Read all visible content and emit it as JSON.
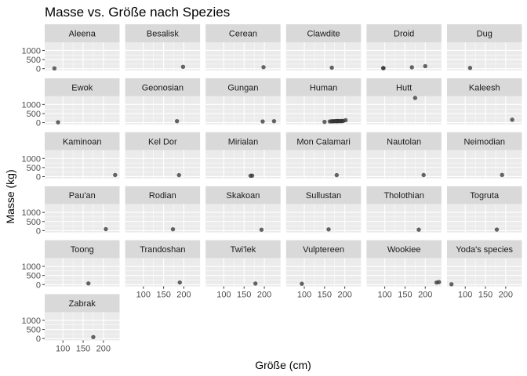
{
  "chart_data": {
    "type": "scatter",
    "title": "Masse vs. Größe nach Spezies",
    "xlabel": "Größe (cm)",
    "ylabel": "Masse (kg)",
    "x_ticks": [
      100,
      150,
      200
    ],
    "y_ticks": [
      0,
      500,
      1000
    ],
    "xlim": [
      55,
      240
    ],
    "ylim": [
      -100,
      1450
    ],
    "grid": true,
    "legend": "none",
    "point_color": "#333333",
    "panel_bg": "#ebebeb",
    "strip_bg": "#d9d9d9",
    "facets": [
      {
        "label": "Aleena",
        "points": [
          [
            79,
            15
          ]
        ]
      },
      {
        "label": "Besalisk",
        "points": [
          [
            198,
            102
          ]
        ]
      },
      {
        "label": "Cerean",
        "points": [
          [
            198,
            82
          ]
        ]
      },
      {
        "label": "Clawdite",
        "points": [
          [
            168,
            55
          ]
        ]
      },
      {
        "label": "Droid",
        "points": [
          [
            96,
            32
          ],
          [
            97,
            32
          ],
          [
            167,
            75
          ],
          [
            200,
            140
          ]
        ]
      },
      {
        "label": "Dug",
        "points": [
          [
            112,
            40
          ]
        ]
      },
      {
        "label": "Ewok",
        "points": [
          [
            88,
            20
          ]
        ]
      },
      {
        "label": "Geonosian",
        "points": [
          [
            183,
            80
          ]
        ]
      },
      {
        "label": "Gungan",
        "points": [
          [
            196,
            66
          ],
          [
            224,
            82
          ]
        ]
      },
      {
        "label": "Human",
        "points": [
          [
            150,
            45
          ],
          [
            163,
            65
          ],
          [
            167,
            75
          ],
          [
            170,
            77
          ],
          [
            172,
            77
          ],
          [
            175,
            80
          ],
          [
            178,
            84
          ],
          [
            180,
            79
          ],
          [
            182,
            90
          ],
          [
            183,
            84
          ],
          [
            185,
            85
          ],
          [
            188,
            84
          ],
          [
            191,
            88
          ],
          [
            193,
            89
          ],
          [
            196,
            90
          ],
          [
            202,
            136
          ]
        ]
      },
      {
        "label": "Hutt",
        "points": [
          [
            175,
            1358
          ]
        ]
      },
      {
        "label": "Kaleesh",
        "points": [
          [
            216,
            159
          ]
        ]
      },
      {
        "label": "Kaminoan",
        "points": [
          [
            229,
            88
          ]
        ]
      },
      {
        "label": "Kel Dor",
        "points": [
          [
            188,
            80
          ]
        ]
      },
      {
        "label": "Mirialan",
        "points": [
          [
            166,
            50
          ],
          [
            170,
            56
          ]
        ]
      },
      {
        "label": "Mon Calamari",
        "points": [
          [
            180,
            83
          ]
        ]
      },
      {
        "label": "Nautolan",
        "points": [
          [
            196,
            87
          ]
        ]
      },
      {
        "label": "Neimodian",
        "points": [
          [
            191,
            90
          ]
        ]
      },
      {
        "label": "Pau'an",
        "points": [
          [
            206,
            80
          ]
        ]
      },
      {
        "label": "Rodian",
        "points": [
          [
            173,
            74
          ]
        ]
      },
      {
        "label": "Skakoan",
        "points": [
          [
            193,
            48
          ]
        ]
      },
      {
        "label": "Sullustan",
        "points": [
          [
            160,
            68
          ]
        ]
      },
      {
        "label": "Tholothian",
        "points": [
          [
            184,
            50
          ]
        ]
      },
      {
        "label": "Togruta",
        "points": [
          [
            178,
            57
          ]
        ]
      },
      {
        "label": "Toong",
        "points": [
          [
            163,
            65
          ]
        ]
      },
      {
        "label": "Trandoshan",
        "points": [
          [
            190,
            113
          ]
        ]
      },
      {
        "label": "Twi'lek",
        "points": [
          [
            178,
            55
          ]
        ]
      },
      {
        "label": "Vulptereen",
        "points": [
          [
            94,
            45
          ]
        ]
      },
      {
        "label": "Wookiee",
        "points": [
          [
            228,
            112
          ],
          [
            234,
            136
          ]
        ]
      },
      {
        "label": "Yoda's species",
        "points": [
          [
            66,
            17
          ]
        ]
      },
      {
        "label": "Zabrak",
        "points": [
          [
            175,
            80
          ]
        ]
      }
    ]
  }
}
